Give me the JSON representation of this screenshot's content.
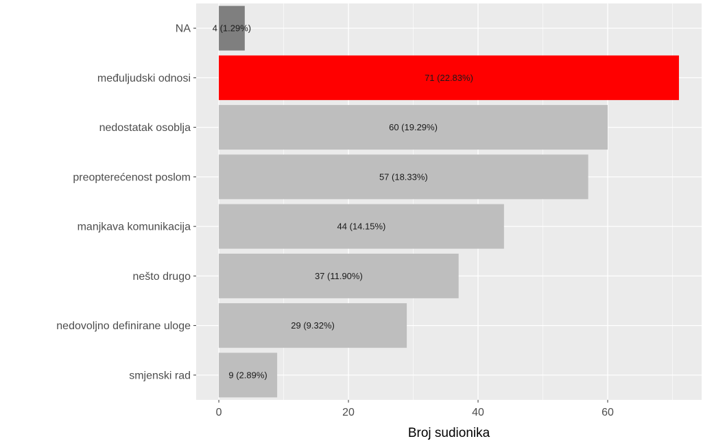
{
  "chart_data": {
    "type": "bar",
    "orientation": "horizontal",
    "categories": [
      "NA",
      "međuljudski odnosi",
      "nedostatak osoblja",
      "preopterećenost poslom",
      "manjkava komunikacija",
      "nešto drugo",
      "nedovoljno definirane uloge",
      "smjenski rad"
    ],
    "values": [
      4,
      71,
      60,
      57,
      44,
      37,
      29,
      9
    ],
    "data_labels": [
      "4 (1.29%)",
      "71 (22.83%)",
      "60 (19.29%)",
      "57 (18.33%)",
      "44 (14.15%)",
      "37 (11.90%)",
      "29 (9.32%)",
      "9 (2.89%)"
    ],
    "bar_colors": [
      "#7f7f7f",
      "#ff0000",
      "#bebebe",
      "#bebebe",
      "#bebebe",
      "#bebebe",
      "#bebebe",
      "#bebebe"
    ],
    "title": "",
    "xlabel": "Broj sudionika",
    "ylabel": "",
    "xlim": [
      -3.5,
      74.5
    ],
    "x_ticks": [
      0,
      20,
      40,
      60
    ],
    "x_tick_labels": [
      "0",
      "20",
      "40",
      "60"
    ],
    "grid": true,
    "legend": "none",
    "panel_background": "#ebebeb",
    "grid_color": "#ffffff"
  }
}
